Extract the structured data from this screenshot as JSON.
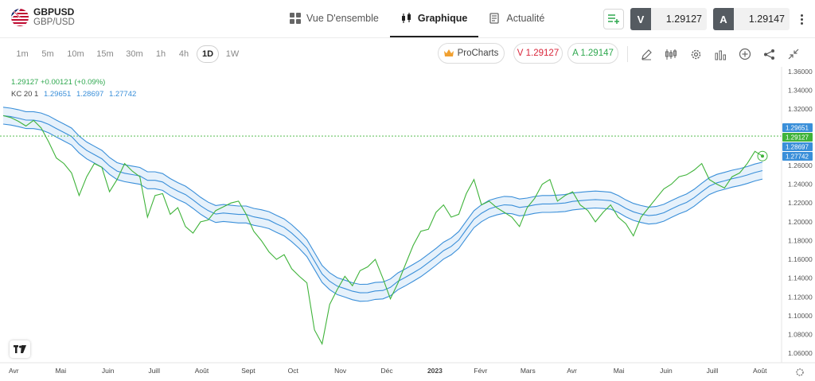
{
  "header": {
    "symbol": "GBPUSD",
    "symbol_sub": "GBP/USD",
    "nav": [
      {
        "label": "Vue D'ensemble",
        "icon": "overview-grid-icon",
        "active": false
      },
      {
        "label": "Graphique",
        "icon": "candlestick-icon",
        "active": true
      },
      {
        "label": "Actualité",
        "icon": "news-icon",
        "active": false
      }
    ],
    "sell_tag": "V",
    "sell_price": "1.29127",
    "buy_tag": "A",
    "buy_price": "1.29147"
  },
  "toolbar": {
    "timeframes": [
      "1m",
      "5m",
      "10m",
      "15m",
      "30m",
      "1h",
      "4h",
      "1D",
      "1W"
    ],
    "active_timeframe": "1D",
    "prochart_label": "ProCharts",
    "sell_label": "V 1.29127",
    "buy_label": "A 1.29147",
    "tools": [
      "pencil-icon",
      "candle-type-icon",
      "gear-icon",
      "indicators-icon",
      "add-icon",
      "share-icon",
      "collapse-icon"
    ]
  },
  "legend": {
    "price_line": "1.29127 +0.00121 (+0.09%)",
    "kc_label": "KC 20 1",
    "kc_upper": "1.29651",
    "kc_mid": "1.28697",
    "kc_lower": "1.27742"
  },
  "colors": {
    "price": "#3fb33a",
    "channel": "#3a8fd9",
    "channel_fill": "#e6f1fb",
    "sell": "#d9263b",
    "buy": "#2fa84f"
  },
  "chart_data": {
    "type": "line",
    "y_ticks": [
      "1.36000",
      "1.34000",
      "1.32000",
      "1.30000",
      "1.28000",
      "1.26000",
      "1.24000",
      "1.22000",
      "1.20000",
      "1.18000",
      "1.16000",
      "1.14000",
      "1.12000",
      "1.10000",
      "1.08000",
      "1.06000"
    ],
    "ylim": [
      1.05,
      1.365
    ],
    "x_ticks": [
      "Avr",
      "Mai",
      "Juin",
      "Juill",
      "Août",
      "Sept",
      "Oct",
      "Nov",
      "Déc",
      "2023",
      "Févr",
      "Mars",
      "Avr",
      "Mai",
      "Juin",
      "Juill",
      "Août"
    ],
    "price_labels": [
      {
        "value": 1.29651,
        "text": "1.29651",
        "color": "#3a8fd9"
      },
      {
        "value": 1.29127,
        "text": "1.29127",
        "color": "#3fb33a"
      },
      {
        "value": 1.28697,
        "text": "1.28697",
        "color": "#3a8fd9"
      },
      {
        "value": 1.27742,
        "text": "1.27742",
        "color": "#3a8fd9"
      }
    ],
    "series": [
      {
        "name": "GBPUSD",
        "x": [
          0,
          2,
          4,
          6,
          8,
          10,
          12,
          14,
          16,
          18,
          20,
          22,
          24,
          26,
          28,
          30,
          32,
          34,
          36,
          38,
          40,
          42,
          44,
          46,
          48,
          50,
          52,
          54,
          56,
          58,
          60,
          62,
          64,
          66,
          68,
          70,
          72,
          74,
          76,
          78,
          80,
          82,
          84,
          86,
          88,
          90,
          92,
          94,
          96,
          98,
          100,
          102,
          104,
          106,
          108,
          110,
          112,
          114,
          116,
          118,
          120,
          122,
          124,
          126,
          128,
          130,
          132,
          134,
          136,
          138,
          140,
          142,
          144,
          146,
          148,
          150,
          152,
          154,
          156,
          158,
          160,
          162,
          164,
          166,
          168,
          170,
          172,
          174,
          176,
          178,
          180,
          182,
          184,
          186,
          188,
          190,
          192,
          194,
          196,
          198,
          200
        ],
        "values": [
          1.313,
          1.311,
          1.307,
          1.302,
          1.308,
          1.3,
          1.285,
          1.268,
          1.262,
          1.252,
          1.228,
          1.248,
          1.262,
          1.258,
          1.232,
          1.245,
          1.262,
          1.254,
          1.248,
          1.205,
          1.228,
          1.23,
          1.208,
          1.215,
          1.195,
          1.188,
          1.2,
          1.202,
          1.212,
          1.216,
          1.22,
          1.222,
          1.208,
          1.19,
          1.18,
          1.168,
          1.16,
          1.165,
          1.15,
          1.142,
          1.135,
          1.085,
          1.07,
          1.112,
          1.128,
          1.142,
          1.132,
          1.148,
          1.152,
          1.16,
          1.14,
          1.118,
          1.135,
          1.155,
          1.175,
          1.19,
          1.192,
          1.21,
          1.218,
          1.205,
          1.208,
          1.23,
          1.245,
          1.218,
          1.222,
          1.215,
          1.21,
          1.205,
          1.195,
          1.215,
          1.225,
          1.24,
          1.245,
          1.222,
          1.228,
          1.232,
          1.218,
          1.212,
          1.2,
          1.21,
          1.218,
          1.205,
          1.198,
          1.185,
          1.205,
          1.215,
          1.225,
          1.235,
          1.24,
          1.248,
          1.25,
          1.255,
          1.262,
          1.245,
          1.24,
          1.236,
          1.248,
          1.252,
          1.262,
          1.275,
          1.27
        ]
      }
    ]
  }
}
